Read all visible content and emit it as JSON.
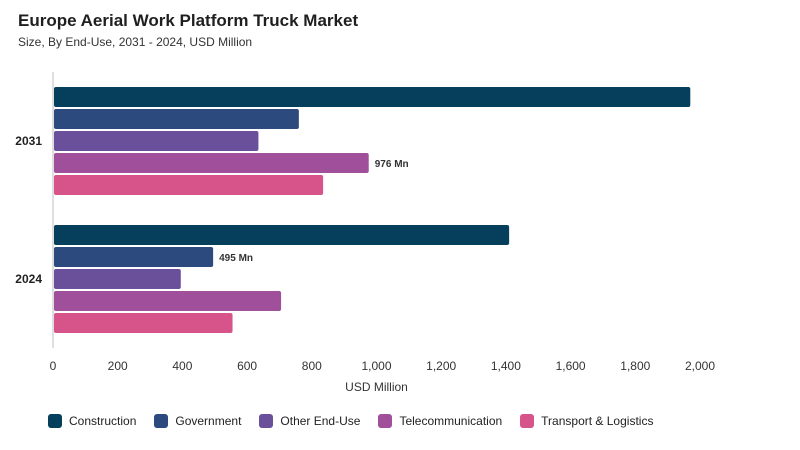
{
  "chart_data": {
    "type": "bar",
    "orientation": "horizontal",
    "title": "Europe Aerial Work Platform Truck Market",
    "subtitle": "Size, By End-Use, 2031 - 2024, USD Million",
    "xlabel": "USD Million",
    "ylabel": "",
    "xlim": [
      0,
      2000
    ],
    "x_ticks": [
      0,
      200,
      400,
      600,
      800,
      1000,
      1200,
      1400,
      1600,
      1800,
      2000
    ],
    "x_tick_labels": [
      "0",
      "200",
      "400",
      "600",
      "800",
      "1,000",
      "1,200",
      "1,400",
      "1,600",
      "1,800",
      "2,000"
    ],
    "grid": false,
    "legend_position": "bottom",
    "categories": [
      "2031",
      "2024"
    ],
    "series": [
      {
        "name": "Construction",
        "color": "#063f5c",
        "values": [
          1970,
          1410
        ]
      },
      {
        "name": "Government",
        "color": "#2c4a7e",
        "values": [
          760,
          495
        ]
      },
      {
        "name": "Other End-Use",
        "color": "#6a4f9a",
        "values": [
          635,
          395
        ]
      },
      {
        "name": "Telecommunication",
        "color": "#a0509b",
        "values": [
          976,
          705
        ]
      },
      {
        "name": "Transport & Logistics",
        "color": "#d7548b",
        "values": [
          835,
          555
        ]
      }
    ],
    "data_labels": [
      {
        "category": "2031",
        "series": "Telecommunication",
        "text": "976 Mn"
      },
      {
        "category": "2024",
        "series": "Government",
        "text": "495 Mn"
      }
    ]
  }
}
